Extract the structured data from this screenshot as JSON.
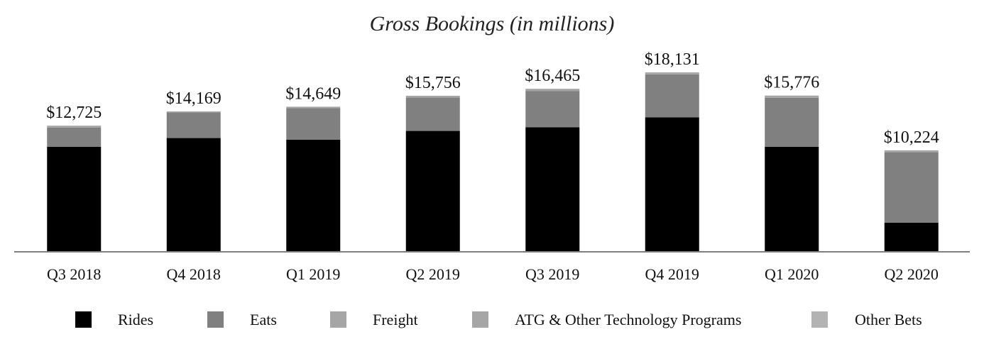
{
  "chart_data": {
    "type": "bar",
    "stacked": true,
    "title": "Gross Bookings (in millions)",
    "xlabel": "",
    "ylabel": "",
    "ylim": [
      0,
      18131
    ],
    "grid": false,
    "legend_position": "bottom",
    "categories": [
      "Q3 2018",
      "Q4 2018",
      "Q1 2019",
      "Q2 2019",
      "Q3 2019",
      "Q4 2019",
      "Q1 2020",
      "Q2 2020"
    ],
    "totals": [
      12725,
      14169,
      14649,
      15756,
      16465,
      18131,
      15776,
      10224
    ],
    "total_labels": [
      "$12,725",
      "$14,169",
      "$14,649",
      "$15,756",
      "$16,465",
      "$18,131",
      "$15,776",
      "$10,224"
    ],
    "series": [
      {
        "name": "Rides",
        "color": "#000000",
        "values": [
          10590,
          11470,
          11300,
          12190,
          12560,
          13570,
          10590,
          2890
        ]
      },
      {
        "name": "Eats",
        "color": "#808080",
        "values": [
          1950,
          2610,
          3210,
          3380,
          3690,
          4360,
          4970,
          7140
        ]
      },
      {
        "name": "Freight",
        "color": "#a6a6a6",
        "values": [
          185,
          89,
          139,
          186,
          215,
          201,
          216,
          194
        ]
      },
      {
        "name": "ATG & Other Technology Programs",
        "color": "#a6a6a6",
        "values": [
          0,
          0,
          0,
          0,
          0,
          0,
          0,
          0
        ]
      },
      {
        "name": "Other Bets",
        "color": "#b3b3b3",
        "values": [
          0,
          0,
          0,
          0,
          0,
          0,
          0,
          0
        ]
      }
    ]
  }
}
